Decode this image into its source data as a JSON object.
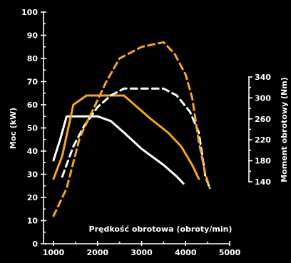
{
  "chart_data": {
    "type": "line",
    "title": "",
    "xlabel": "Prędkość obrotowa (obroty/min)",
    "ylabel_left": "Moc (kW)",
    "ylabel_right": "Moment obrotowy (Nm)",
    "xlim": [
      1000,
      5000
    ],
    "ylim_left": [
      0,
      100
    ],
    "ylim_right": [
      140,
      340
    ],
    "x_ticks": [
      "1000",
      "2000",
      "3000",
      "4000",
      "5000"
    ],
    "y_left_ticks": [
      "0",
      "10",
      "20",
      "30",
      "40",
      "50",
      "60",
      "70",
      "80",
      "90",
      "100"
    ],
    "y_right_ticks": [
      "140",
      "180",
      "220",
      "260",
      "300",
      "340"
    ],
    "grid": false,
    "legend": "none",
    "colors": {
      "background": "#000000",
      "white": "#ffffff",
      "orange": "#f5a623"
    },
    "series": [
      {
        "color": "#ffffff",
        "dashed": false,
        "axis": "left",
        "points": [
          [
            1000,
            36
          ],
          [
            1150,
            45
          ],
          [
            1300,
            55
          ],
          [
            1500,
            55
          ],
          [
            2000,
            55
          ],
          [
            2300,
            53
          ],
          [
            2600,
            48
          ],
          [
            3000,
            41
          ],
          [
            3500,
            34
          ],
          [
            3800,
            29
          ],
          [
            3950,
            26
          ]
        ]
      },
      {
        "color": "#f5a623",
        "dashed": false,
        "axis": "left",
        "points": [
          [
            1000,
            28
          ],
          [
            1200,
            38
          ],
          [
            1450,
            60
          ],
          [
            1750,
            64
          ],
          [
            2100,
            64
          ],
          [
            2600,
            64
          ],
          [
            2900,
            59
          ],
          [
            3200,
            54
          ],
          [
            3600,
            48
          ],
          [
            3900,
            42
          ],
          [
            4150,
            34
          ],
          [
            4300,
            28
          ]
        ]
      },
      {
        "color": "#ffffff",
        "dashed": true,
        "axis": "left",
        "points": [
          [
            1200,
            29
          ],
          [
            1450,
            42
          ],
          [
            1700,
            51
          ],
          [
            2000,
            59
          ],
          [
            2300,
            64
          ],
          [
            2600,
            67
          ],
          [
            3000,
            67
          ],
          [
            3500,
            67
          ],
          [
            3800,
            64
          ],
          [
            4100,
            57
          ],
          [
            4300,
            48
          ],
          [
            4450,
            29
          ],
          [
            4550,
            24
          ]
        ]
      },
      {
        "color": "#f5a623",
        "dashed": true,
        "axis": "left",
        "points": [
          [
            1000,
            12
          ],
          [
            1300,
            24
          ],
          [
            1600,
            46
          ],
          [
            1900,
            58
          ],
          [
            2200,
            70
          ],
          [
            2500,
            80
          ],
          [
            3000,
            85
          ],
          [
            3500,
            87
          ],
          [
            3750,
            82
          ],
          [
            4000,
            73
          ],
          [
            4150,
            63
          ],
          [
            4300,
            44
          ],
          [
            4450,
            30
          ],
          [
            4550,
            24
          ]
        ]
      }
    ]
  }
}
